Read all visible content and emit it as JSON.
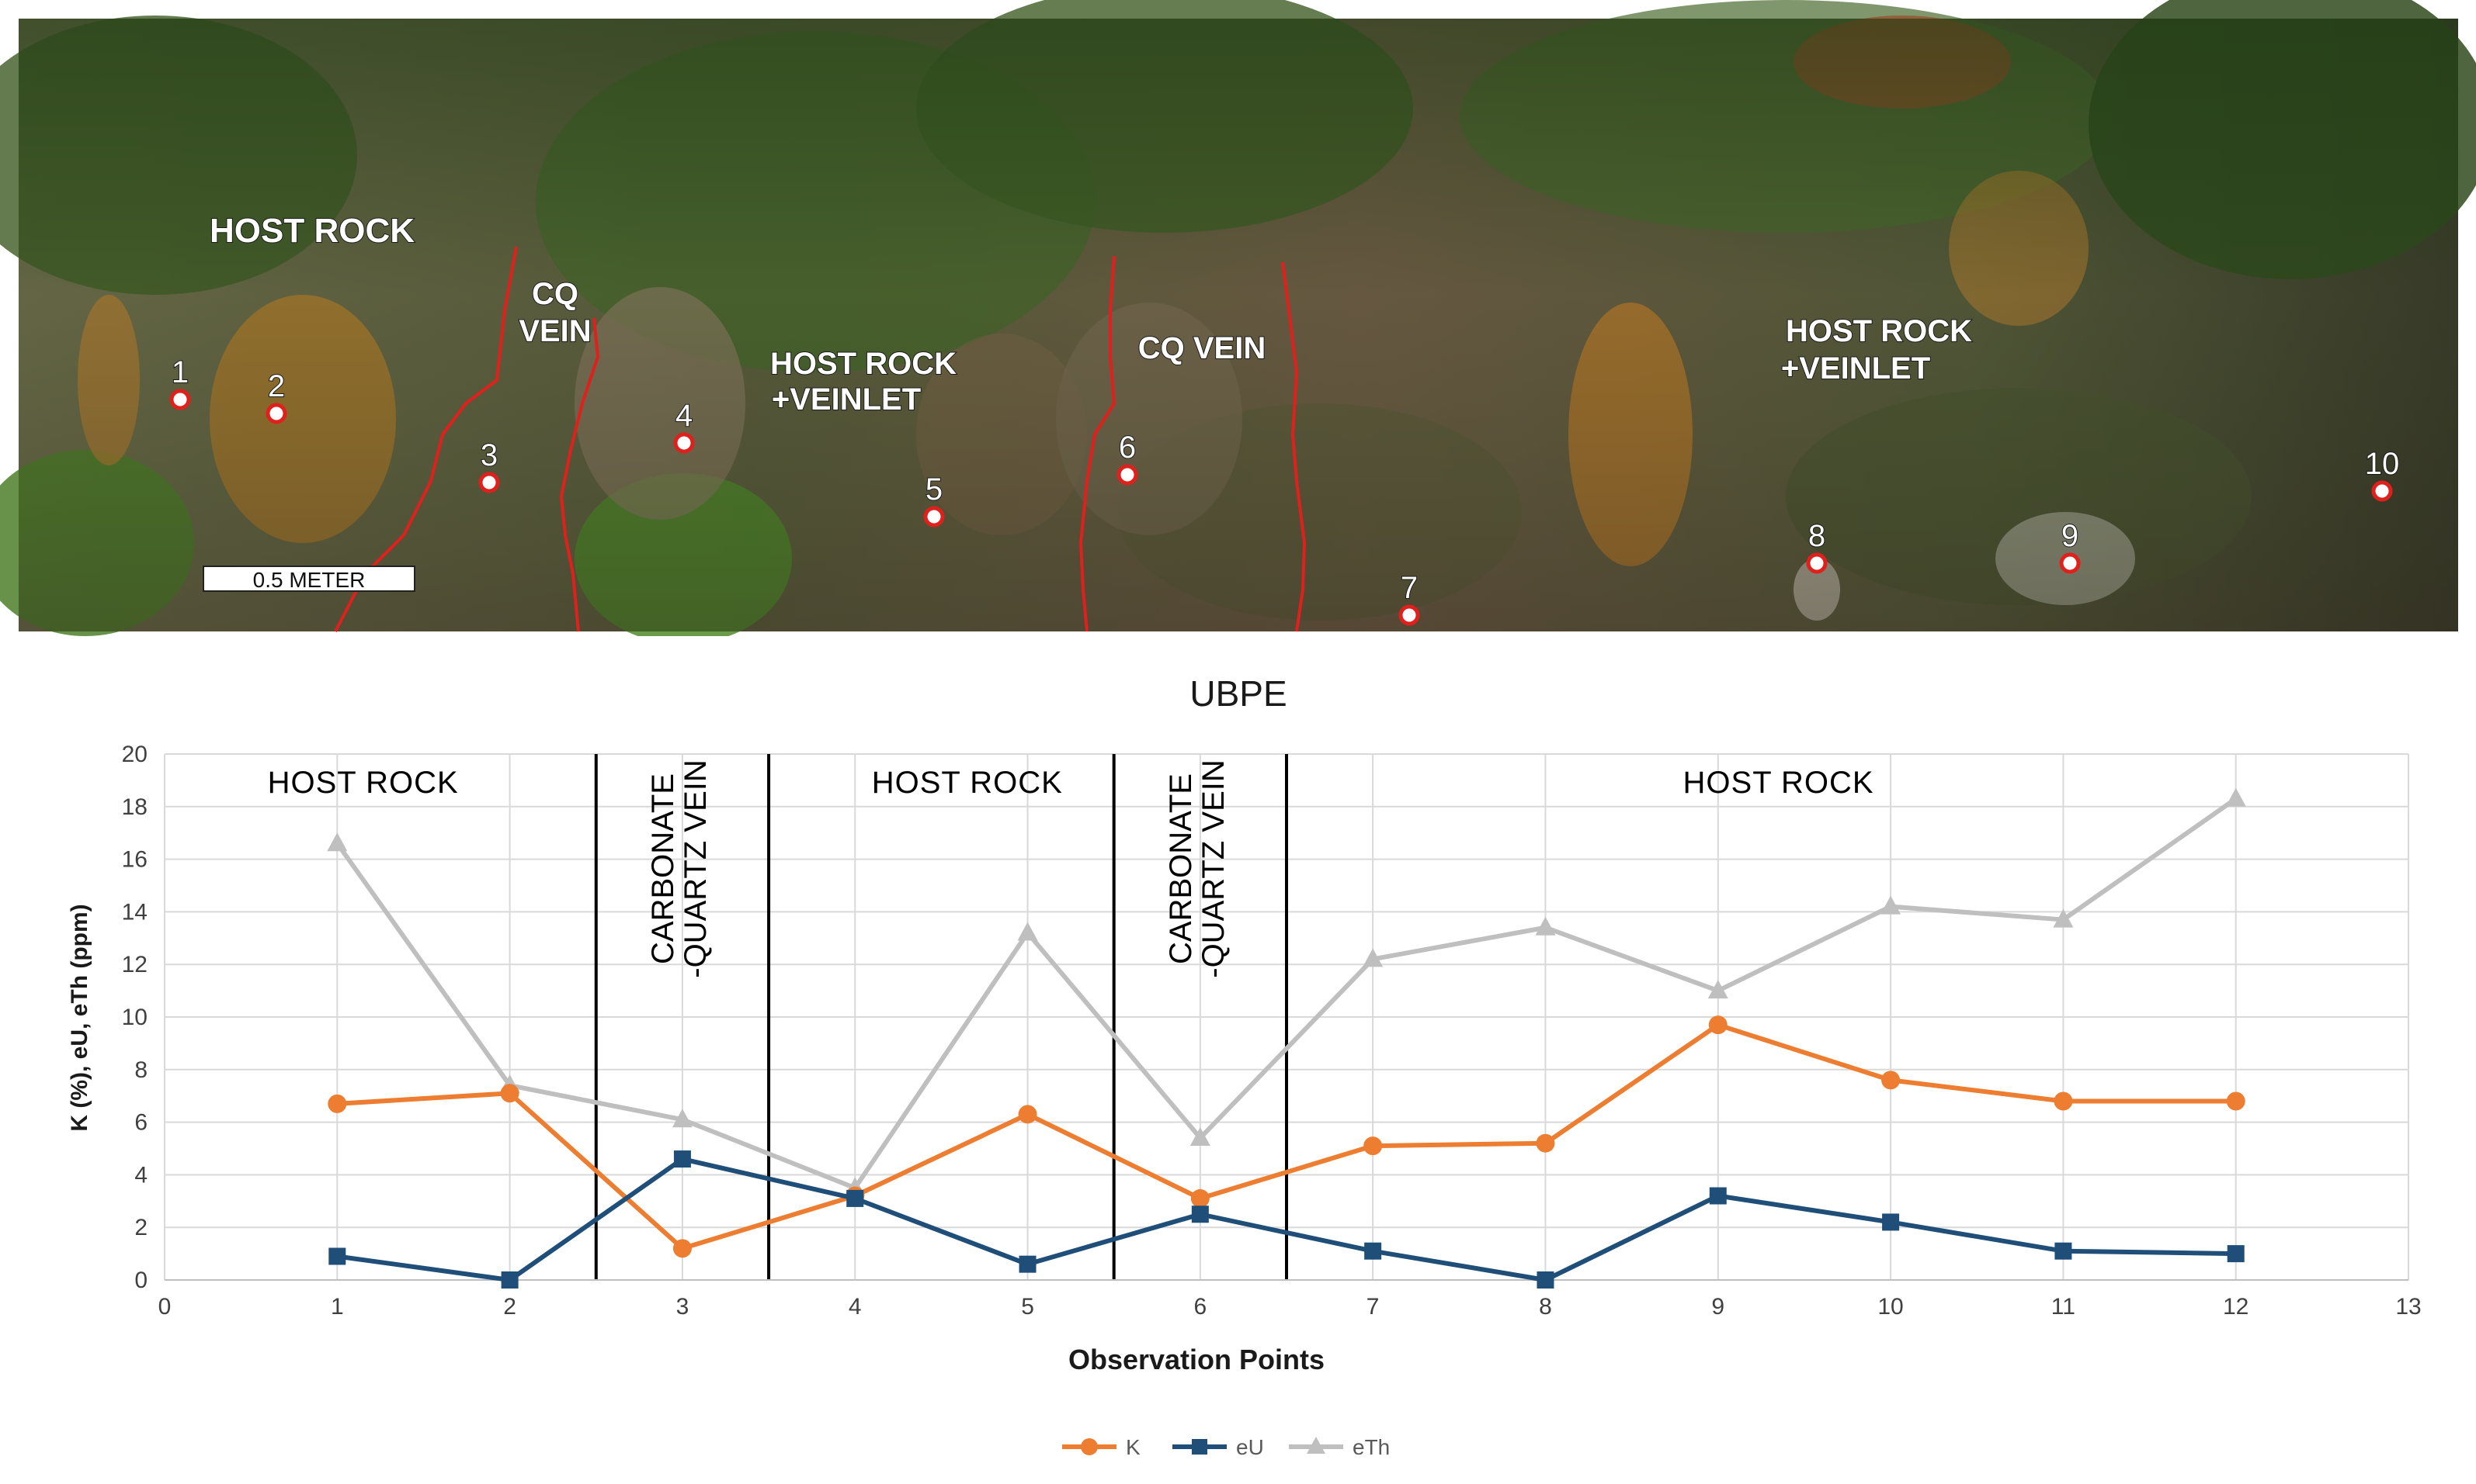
{
  "photo": {
    "labels": {
      "host_rock_left": "HOST ROCK",
      "cq_vein_1_line1": "CQ",
      "cq_vein_1_line2": "VEIN",
      "host_rock_veinlet_1_line1": "HOST ROCK",
      "host_rock_veinlet_1_line2": "+VEINLET",
      "cq_vein_2": "CQ VEIN",
      "host_rock_veinlet_2_line1": "HOST ROCK",
      "host_rock_veinlet_2_line2": "+VEINLET"
    },
    "scale_bar": "0.5 METER",
    "points": [
      "1",
      "2",
      "3",
      "4",
      "5",
      "6",
      "7",
      "8",
      "9",
      "10"
    ],
    "colors": {
      "boundary": "#e0201c",
      "marker": "#e0201c",
      "label": "#ffffff"
    }
  },
  "chart_data": {
    "type": "line",
    "title": "UBPE",
    "xlabel": "Observation Points",
    "ylabel": "K (%), eU, eTh (ppm)",
    "xlim": [
      0,
      13
    ],
    "ylim": [
      0,
      20
    ],
    "xticks": [
      0,
      1,
      2,
      3,
      4,
      5,
      6,
      7,
      8,
      9,
      10,
      11,
      12,
      13
    ],
    "yticks": [
      0,
      2,
      4,
      6,
      8,
      10,
      12,
      14,
      16,
      18,
      20
    ],
    "grid": true,
    "legend_position": "bottom",
    "x": [
      1,
      2,
      3,
      4,
      5,
      6,
      7,
      8,
      9,
      10,
      11,
      12
    ],
    "series": [
      {
        "name": "K",
        "color": "#ed7d31",
        "marker": "circle",
        "values": [
          6.7,
          7.1,
          1.2,
          3.2,
          6.3,
          3.1,
          5.1,
          5.2,
          9.7,
          7.6,
          6.8,
          6.8
        ]
      },
      {
        "name": "eU",
        "color": "#1f4e79",
        "marker": "square",
        "values": [
          0.9,
          0.0,
          4.6,
          3.1,
          0.6,
          2.5,
          1.1,
          0.0,
          3.2,
          2.2,
          1.1,
          1.0
        ]
      },
      {
        "name": "eTh",
        "color": "#bfbfbf",
        "marker": "triangle",
        "values": [
          16.6,
          7.4,
          6.1,
          3.5,
          13.2,
          5.4,
          12.2,
          13.4,
          11.0,
          14.2,
          13.7,
          18.3
        ]
      }
    ],
    "zone_boundaries": [
      2.5,
      3.5,
      5.5,
      6.5
    ],
    "zones": [
      {
        "label": "HOST ROCK",
        "center": 1.15,
        "orientation": "horizontal"
      },
      {
        "label_line1": "CARBONATE",
        "label_line2": "-QUARTZ VEIN",
        "center": 3.0,
        "orientation": "vertical"
      },
      {
        "label": "HOST ROCK",
        "center": 4.65,
        "orientation": "horizontal"
      },
      {
        "label_line1": "CARBONATE",
        "label_line2": "-QUARTZ VEIN",
        "center": 6.0,
        "orientation": "vertical"
      },
      {
        "label": "HOST ROCK",
        "center": 9.35,
        "orientation": "horizontal"
      }
    ]
  }
}
